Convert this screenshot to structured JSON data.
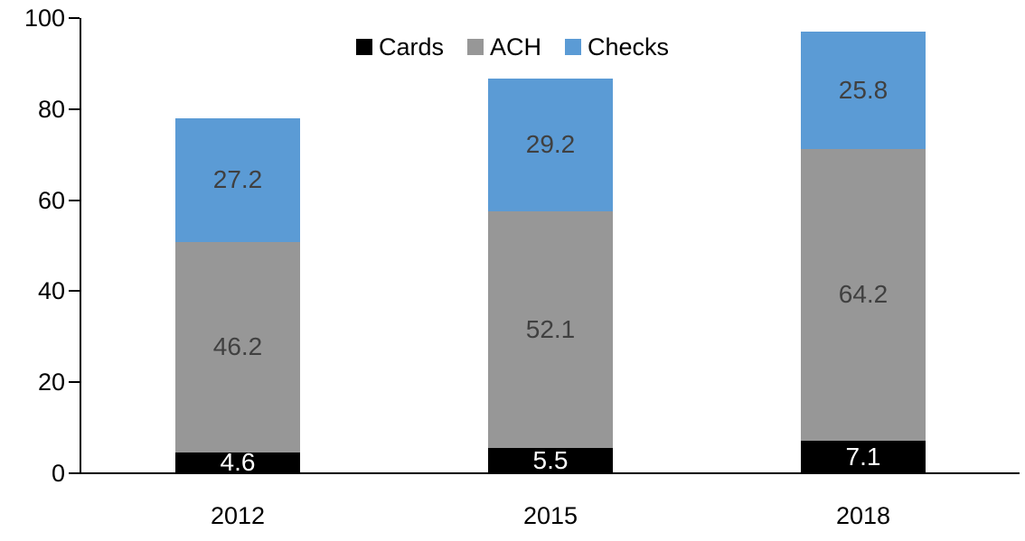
{
  "chart_data": {
    "type": "bar",
    "stacked": true,
    "title": "",
    "categories": [
      "2012",
      "2015",
      "2018"
    ],
    "series": [
      {
        "name": "Cards",
        "color": "#000000",
        "label_color": "#FFFFFF",
        "values": [
          4.6,
          5.5,
          7.1
        ]
      },
      {
        "name": "ACH",
        "color": "#979797",
        "label_color": "#404040",
        "values": [
          46.2,
          52.1,
          64.2
        ]
      },
      {
        "name": "Checks",
        "color": "#5B9BD5",
        "label_color": "#404040",
        "values": [
          27.2,
          29.2,
          25.8
        ]
      }
    ],
    "yticks": [
      0,
      20,
      40,
      60,
      80,
      100
    ],
    "ylim": [
      0,
      100
    ],
    "xlabel": "",
    "ylabel": "",
    "legend_position": "top-center",
    "grid": false,
    "axis_color": "#000000",
    "background_color": "#FFFFFF",
    "bar_gap_ratio": 1.5
  }
}
